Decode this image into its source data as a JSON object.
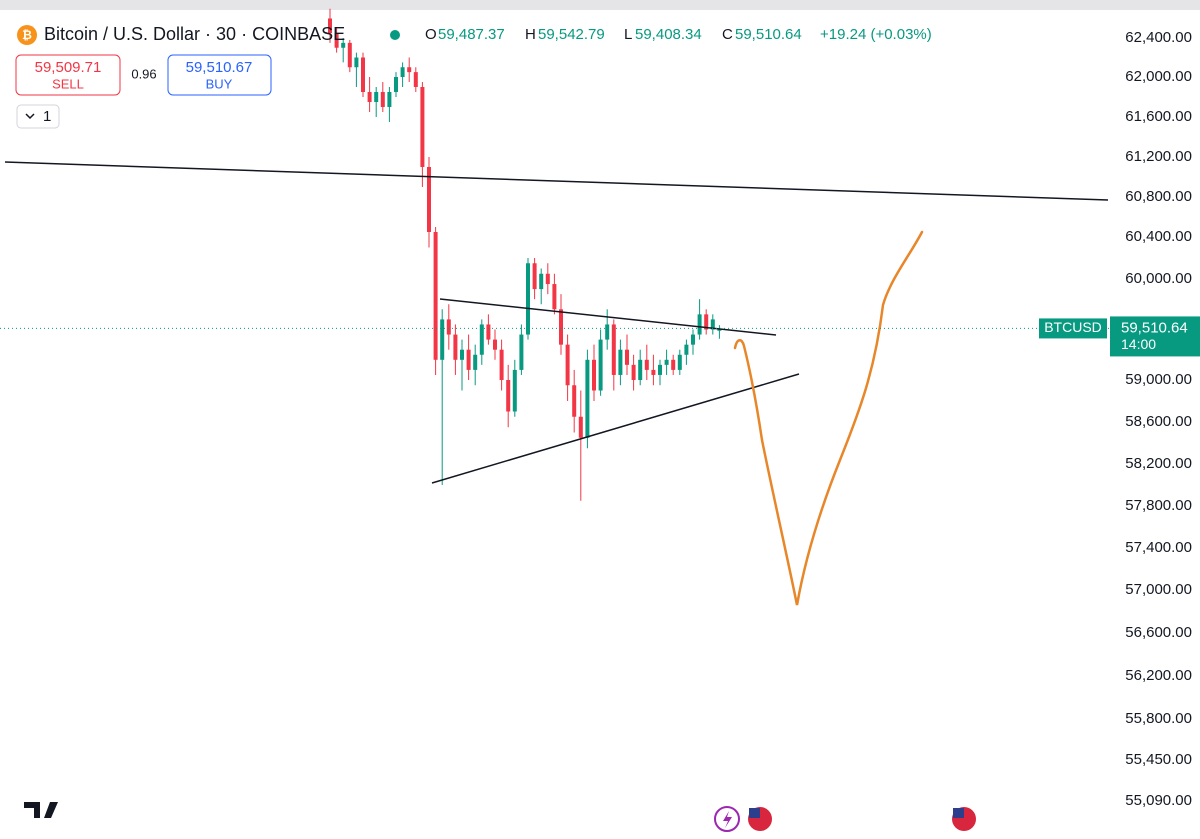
{
  "header": {
    "symbol": "Bitcoin / U.S. Dollar · 30 · COINBASE",
    "open_key": "O",
    "open": "59,487.37",
    "high_key": "H",
    "high": "59,542.79",
    "low_key": "L",
    "low": "59,408.34",
    "close_key": "C",
    "close": "59,510.64",
    "change": "+19.24 (+0.03%)"
  },
  "trade": {
    "sell_price": "59,509.71",
    "sell_label": "SELL",
    "spread": "0.96",
    "buy_price": "59,510.67",
    "buy_label": "BUY",
    "quantity": "1"
  },
  "chart": {
    "price_ticks": [
      {
        "value": 62400,
        "label": "62,400.00"
      },
      {
        "value": 62000,
        "label": "62,000.00"
      },
      {
        "value": 61600,
        "label": "61,600.00"
      },
      {
        "value": 61200,
        "label": "61,200.00"
      },
      {
        "value": 60800,
        "label": "60,800.00"
      },
      {
        "value": 60400,
        "label": "60,400.00"
      },
      {
        "value": 60000,
        "label": "60,000.00"
      },
      {
        "value": 59000,
        "label": "59,000.00"
      },
      {
        "value": 58600,
        "label": "58,600.00"
      },
      {
        "value": 58200,
        "label": "58,200.00"
      },
      {
        "value": 57800,
        "label": "57,800.00"
      },
      {
        "value": 57400,
        "label": "57,400.00"
      },
      {
        "value": 57000,
        "label": "57,000.00"
      },
      {
        "value": 56600,
        "label": "56,600.00"
      },
      {
        "value": 56200,
        "label": "56,200.00"
      },
      {
        "value": 55800,
        "label": "55,800.00"
      },
      {
        "value": 55450,
        "label": "55,450.00"
      },
      {
        "value": 55090,
        "label": "55,090.00"
      }
    ],
    "last_price": {
      "value": 59510.64,
      "label": "59,510.64"
    },
    "last_symbol": "BTCUSD",
    "countdown": "14:00",
    "up_color": "#089981",
    "down_color": "#f23645",
    "candles": [
      [
        62600,
        62700,
        62350,
        62450
      ],
      [
        62450,
        62500,
        62250,
        62300
      ],
      [
        62300,
        62400,
        62150,
        62350
      ],
      [
        62350,
        62380,
        62050,
        62100
      ],
      [
        62100,
        62250,
        61900,
        62200
      ],
      [
        62200,
        62250,
        61800,
        61850
      ],
      [
        61850,
        62000,
        61650,
        61750
      ],
      [
        61750,
        61900,
        61600,
        61850
      ],
      [
        61850,
        61950,
        61650,
        61700
      ],
      [
        61700,
        61900,
        61550,
        61850
      ],
      [
        61850,
        62050,
        61800,
        62000
      ],
      [
        62000,
        62150,
        61900,
        62100
      ],
      [
        62100,
        62200,
        61950,
        62050
      ],
      [
        62050,
        62100,
        61850,
        61900
      ],
      [
        61900,
        61950,
        60900,
        61100
      ],
      [
        61100,
        61200,
        60300,
        60450
      ],
      [
        60450,
        60500,
        59050,
        59200
      ],
      [
        59200,
        59700,
        58000,
        59600
      ],
      [
        59600,
        59750,
        59300,
        59450
      ],
      [
        59450,
        59550,
        59050,
        59200
      ],
      [
        59200,
        59400,
        58900,
        59300
      ],
      [
        59300,
        59450,
        59000,
        59100
      ],
      [
        59100,
        59350,
        58950,
        59250
      ],
      [
        59250,
        59600,
        59150,
        59550
      ],
      [
        59550,
        59650,
        59350,
        59400
      ],
      [
        59400,
        59500,
        59200,
        59300
      ],
      [
        59300,
        59400,
        58900,
        59000
      ],
      [
        59000,
        59150,
        58550,
        58700
      ],
      [
        58700,
        59200,
        58650,
        59100
      ],
      [
        59100,
        59550,
        59050,
        59450
      ],
      [
        59450,
        60200,
        59400,
        60150
      ],
      [
        60150,
        60200,
        59800,
        59900
      ],
      [
        59900,
        60100,
        59750,
        60050
      ],
      [
        60050,
        60150,
        59850,
        59950
      ],
      [
        59950,
        60050,
        59650,
        59700
      ],
      [
        59700,
        59850,
        59250,
        59350
      ],
      [
        59350,
        59450,
        58800,
        58950
      ],
      [
        58950,
        59100,
        58500,
        58650
      ],
      [
        58650,
        58900,
        57850,
        58450
      ],
      [
        58450,
        59300,
        58350,
        59200
      ],
      [
        59200,
        59350,
        58800,
        58900
      ],
      [
        58900,
        59500,
        58850,
        59400
      ],
      [
        59400,
        59700,
        59300,
        59550
      ],
      [
        59550,
        59600,
        58900,
        59050
      ],
      [
        59050,
        59400,
        58950,
        59300
      ],
      [
        59300,
        59450,
        59050,
        59150
      ],
      [
        59150,
        59250,
        58900,
        59000
      ],
      [
        59000,
        59300,
        58950,
        59200
      ],
      [
        59200,
        59350,
        59000,
        59100
      ],
      [
        59100,
        59250,
        58950,
        59050
      ],
      [
        59050,
        59200,
        58950,
        59150
      ],
      [
        59150,
        59300,
        59050,
        59200
      ],
      [
        59200,
        59250,
        59050,
        59100
      ],
      [
        59100,
        59300,
        59050,
        59250
      ],
      [
        59250,
        59400,
        59150,
        59350
      ],
      [
        59350,
        59500,
        59250,
        59450
      ],
      [
        59450,
        59800,
        59400,
        59650
      ],
      [
        59650,
        59700,
        59450,
        59500
      ],
      [
        59500,
        59650,
        59450,
        59600
      ],
      [
        59487.37,
        59542.79,
        59408.34,
        59510.64
      ]
    ]
  }
}
